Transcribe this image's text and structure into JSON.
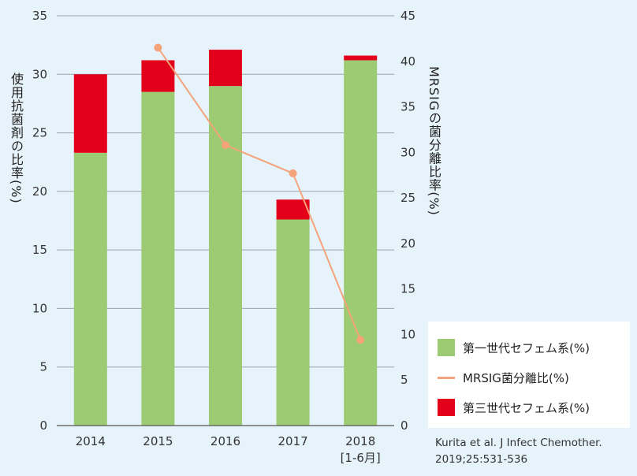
{
  "chart_data": {
    "type": "bar",
    "stacked": true,
    "categories": [
      "2014",
      "2015",
      "2016",
      "2017",
      "2018"
    ],
    "category_sublabels": [
      "",
      "",
      "",
      "",
      "[1-6月]"
    ],
    "series": [
      {
        "name": "第一世代セフェム系(%)",
        "type": "bar",
        "axis": "left",
        "color": "#9ccb74",
        "values": [
          23.3,
          28.5,
          29.0,
          17.6,
          31.2
        ]
      },
      {
        "name": "第三世代セフェム系(%)",
        "type": "bar",
        "axis": "left",
        "color": "#e3001b",
        "values": [
          6.7,
          2.7,
          3.1,
          1.7,
          0.4
        ]
      },
      {
        "name": "MRSIG菌分離比(%)",
        "type": "line",
        "axis": "right",
        "color": "#f4a37b",
        "values": [
          null,
          41.5,
          30.8,
          27.7,
          9.4
        ]
      }
    ],
    "ylabel": "使用抗菌剤の比率(%)",
    "ylabel_right": "MRSIGの菌分離比率(%)",
    "ylim": [
      0,
      35
    ],
    "ylim_right": [
      0,
      45
    ],
    "yticks": [
      0,
      5,
      10,
      15,
      20,
      25,
      30,
      35
    ],
    "yticks_right": [
      0,
      5,
      10,
      15,
      20,
      25,
      30,
      35,
      40,
      45
    ],
    "grid": true,
    "legend_position": "bottom-right"
  },
  "legend": {
    "items": [
      {
        "label": "第一世代セフェム系(%)",
        "color": "#9ccb74",
        "kind": "box"
      },
      {
        "label": "MRSIG菌分離比(%)",
        "color": "#f4a37b",
        "kind": "line"
      },
      {
        "label": "第三世代セフェム系(%)",
        "color": "#e3001b",
        "kind": "box"
      }
    ]
  },
  "source": {
    "line1": "Kurita et al. J Infect Chemother.",
    "line2": "2019;25:531-536"
  }
}
